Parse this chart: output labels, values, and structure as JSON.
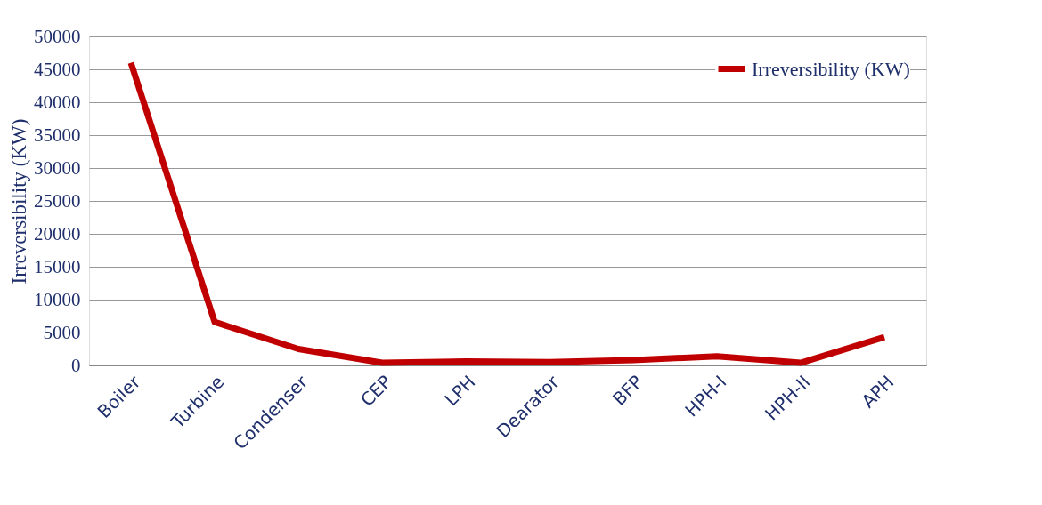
{
  "chart_data": {
    "type": "line",
    "ylabel": "Irreversibility (KW)",
    "categories": [
      "Boiler",
      "Turbine",
      "Condenser",
      "CEP",
      "LPH",
      "Dearator",
      "BFP",
      "HPH-I",
      "HPH-II",
      "APH"
    ],
    "series": [
      {
        "name": "Irreversibility (KW)",
        "color": "#c00000",
        "values": [
          46000,
          6600,
          2500,
          400,
          600,
          500,
          800,
          1400,
          400,
          4300
        ]
      }
    ],
    "ylim": [
      0,
      50000
    ],
    "yticks": [
      0,
      5000,
      10000,
      15000,
      20000,
      25000,
      30000,
      35000,
      40000,
      45000,
      50000
    ],
    "grid": "y",
    "legend": "top right",
    "marker": "none",
    "line_style": "solid"
  }
}
